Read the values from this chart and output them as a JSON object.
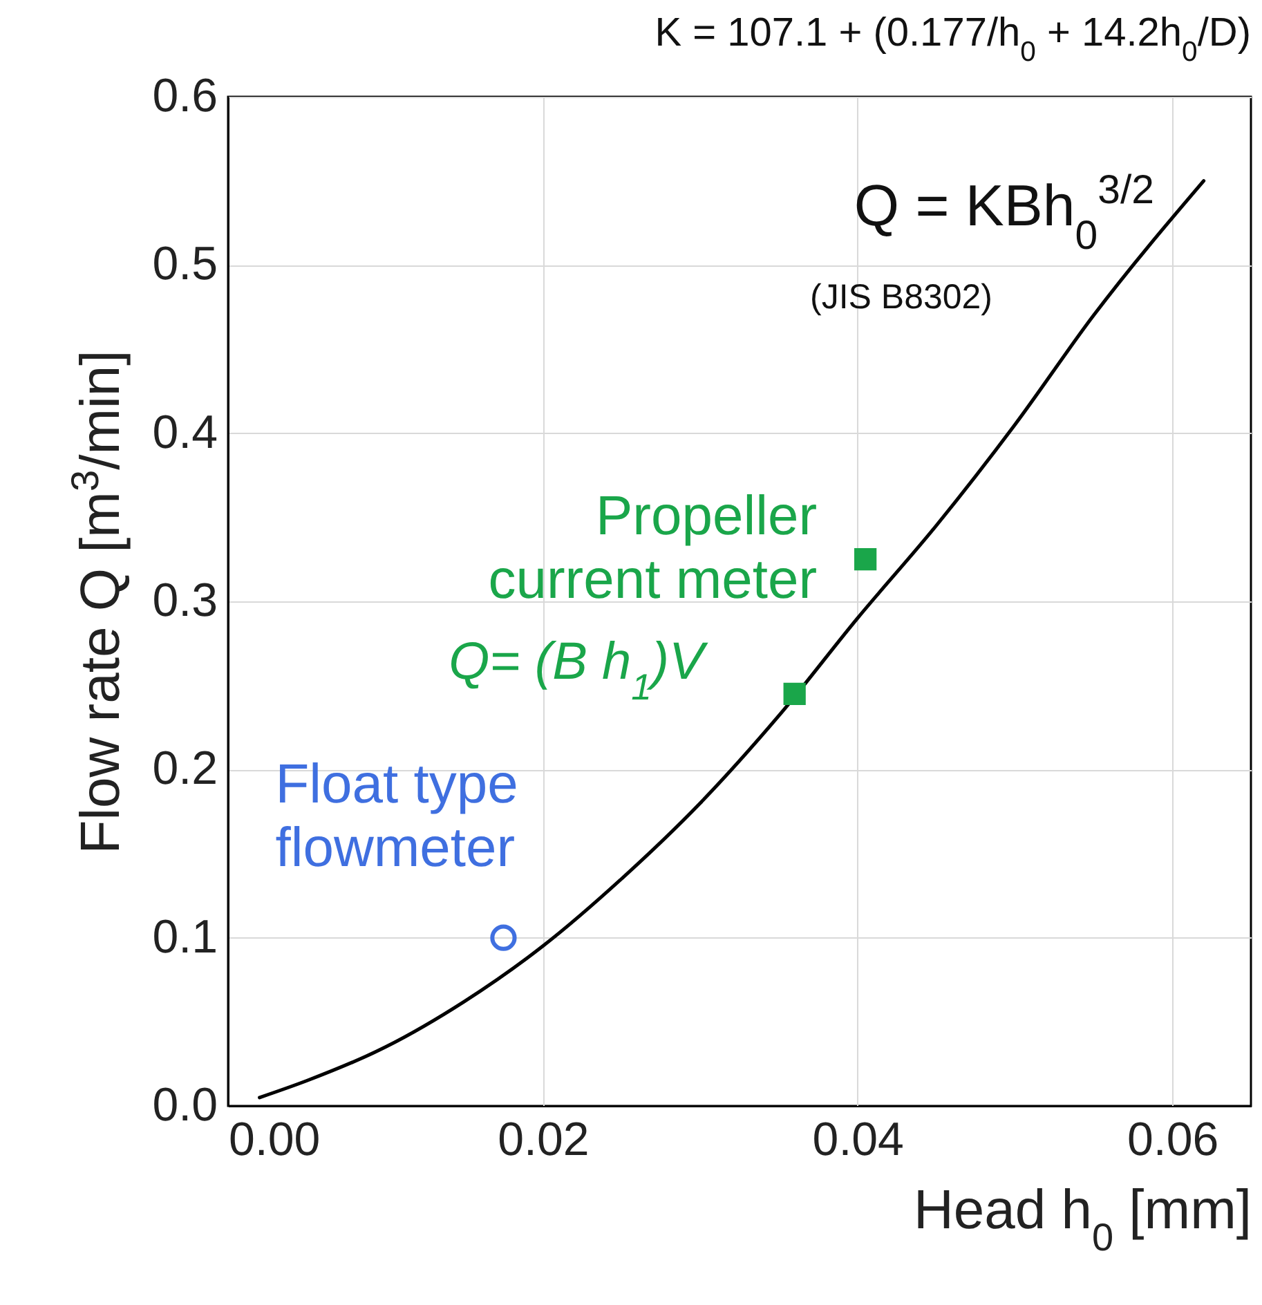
{
  "chart_data": {
    "type": "line",
    "title": "K = 107.1 + (0.177/h$_{0}$ + 14.2h$_{0}$/D)",
    "xlabel": "Head  h$_{0}$ [mm]",
    "ylabel": "Flow rate   Q [m$^{3}$/min]",
    "xlim": [
      0,
      0.065
    ],
    "ylim": [
      0,
      0.6
    ],
    "xticks": [
      {
        "value": 0,
        "label": "0.00"
      },
      {
        "value": 0.02,
        "label": "0.02"
      },
      {
        "value": 0.04,
        "label": "0.04"
      },
      {
        "value": 0.06,
        "label": "0.06"
      }
    ],
    "yticks": [
      {
        "value": 0,
        "label": "0.0"
      },
      {
        "value": 0.1,
        "label": "0.1"
      },
      {
        "value": 0.2,
        "label": "0.2"
      },
      {
        "value": 0.3,
        "label": "0.3"
      },
      {
        "value": 0.4,
        "label": "0.4"
      },
      {
        "value": 0.5,
        "label": "0.5"
      },
      {
        "value": 0.6,
        "label": "0.6"
      }
    ],
    "grid": true,
    "series": [
      {
        "color": "#000000",
        "marker": "none",
        "x": [
          0.002,
          0.005,
          0.01,
          0.015,
          0.02,
          0.025,
          0.03,
          0.035,
          0.04,
          0.045,
          0.05,
          0.055,
          0.062
        ],
        "values": [
          0.005,
          0.015,
          0.035,
          0.062,
          0.095,
          0.135,
          0.18,
          0.232,
          0.29,
          0.345,
          0.405,
          0.47,
          0.55
        ]
      },
      {
        "type": "scatter",
        "name": "Propeller current meter",
        "color": "#1aa64a",
        "marker": "square",
        "x": [
          0.0405,
          0.036
        ],
        "values": [
          0.325,
          0.245
        ]
      },
      {
        "type": "scatter",
        "name": "Float type flowmeter",
        "color": "#3f6fe0",
        "marker": "circle",
        "x": [
          0.0175
        ],
        "values": [
          0.1
        ]
      }
    ],
    "annotations": [
      "Q = KBh$_{0}$$^{3/2}$",
      "(JIS B8302)",
      "Q= (B h$_{1}$)V"
    ]
  }
}
